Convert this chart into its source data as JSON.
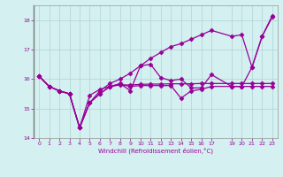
{
  "xlabel": "Windchill (Refroidissement éolien,°C)",
  "bg_color": "#d4f0f0",
  "line_color": "#990099",
  "ylim": [
    14,
    18.5
  ],
  "xlim": [
    -0.5,
    23.5
  ],
  "yticks": [
    14,
    15,
    16,
    17,
    18
  ],
  "xticks": [
    0,
    1,
    2,
    3,
    4,
    5,
    6,
    7,
    8,
    9,
    10,
    11,
    12,
    13,
    14,
    15,
    16,
    17,
    19,
    20,
    21,
    22,
    23
  ],
  "series": [
    {
      "x": [
        0,
        1,
        2,
        3,
        4,
        5,
        6,
        7,
        8,
        9,
        10,
        11,
        12,
        13,
        14,
        15,
        16,
        17,
        19,
        20,
        21,
        22,
        23
      ],
      "y": [
        16.1,
        15.75,
        15.6,
        15.5,
        14.35,
        15.2,
        15.6,
        15.85,
        16.0,
        16.2,
        16.45,
        16.7,
        16.9,
        17.1,
        17.2,
        17.35,
        17.5,
        17.65,
        17.45,
        17.5,
        16.4,
        17.45,
        18.15
      ],
      "marker": "D",
      "markersize": 2.5,
      "linestyle": "-",
      "linewidth": 0.9
    },
    {
      "x": [
        0,
        1,
        2,
        3,
        4,
        5,
        6,
        7,
        8,
        9,
        10,
        11,
        12,
        13,
        14,
        15,
        16,
        17,
        19,
        20,
        21,
        22,
        23
      ],
      "y": [
        16.1,
        15.75,
        15.6,
        15.5,
        14.35,
        15.45,
        15.65,
        15.75,
        15.8,
        15.8,
        15.82,
        15.83,
        15.83,
        15.84,
        15.84,
        15.84,
        15.85,
        15.85,
        15.85,
        15.85,
        15.85,
        15.85,
        15.85
      ],
      "marker": "D",
      "markersize": 2.5,
      "linestyle": "-",
      "linewidth": 0.9
    },
    {
      "x": [
        0,
        1,
        2,
        3,
        4,
        5,
        6,
        7,
        8,
        9,
        10,
        11,
        12,
        13,
        14,
        15,
        16,
        17,
        19,
        20,
        21,
        22,
        23
      ],
      "y": [
        16.1,
        15.75,
        15.6,
        15.5,
        14.35,
        15.2,
        15.5,
        15.75,
        15.85,
        15.6,
        16.45,
        16.5,
        16.05,
        15.95,
        16.0,
        15.7,
        15.7,
        16.15,
        15.75,
        15.75,
        16.4,
        17.45,
        18.1
      ],
      "marker": "D",
      "markersize": 2.5,
      "linestyle": "-",
      "linewidth": 0.9
    },
    {
      "x": [
        0,
        1,
        2,
        3,
        4,
        5,
        6,
        7,
        8,
        9,
        10,
        11,
        12,
        13,
        14,
        15,
        16,
        17,
        19,
        20,
        21,
        22,
        23
      ],
      "y": [
        16.1,
        15.75,
        15.6,
        15.5,
        14.35,
        15.2,
        15.5,
        15.75,
        15.82,
        15.75,
        15.78,
        15.78,
        15.78,
        15.78,
        15.35,
        15.6,
        15.65,
        15.75,
        15.75,
        15.75,
        15.75,
        15.75,
        15.75
      ],
      "marker": "D",
      "markersize": 2.5,
      "linestyle": "-",
      "linewidth": 0.9
    }
  ]
}
